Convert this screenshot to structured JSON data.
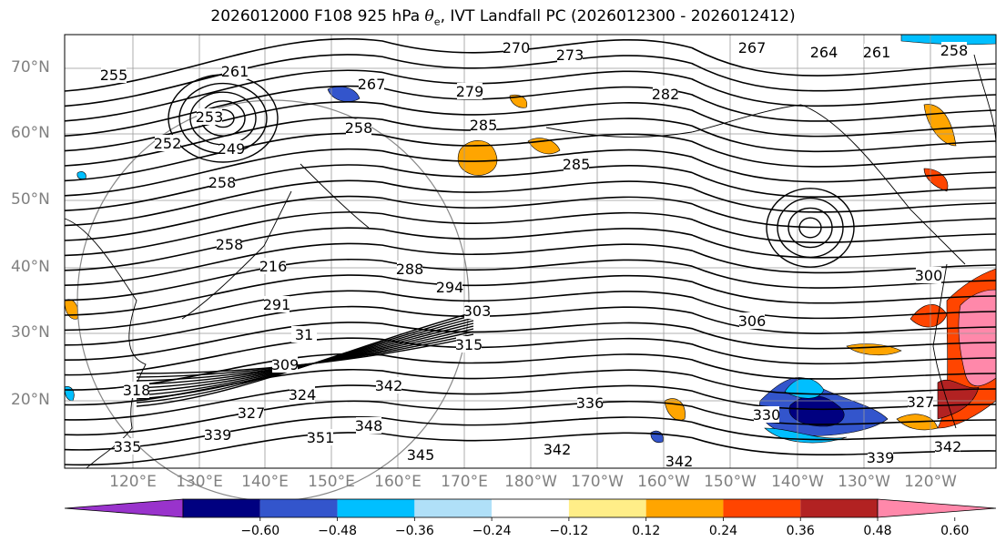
{
  "title": {
    "prefix": "2026012000 F108 925 hPa ",
    "theta": "θ",
    "subscript": "e",
    "suffix": ", IVT Landfall PC (2026012300 - 2026012412)"
  },
  "map": {
    "lat_labels": [
      "70°N",
      "60°N",
      "50°N",
      "40°N",
      "30°N",
      "20°N"
    ],
    "lon_labels": [
      "120°E",
      "130°E",
      "140°E",
      "150°E",
      "160°E",
      "170°E",
      "180°W",
      "170°W",
      "160°W",
      "150°W",
      "140°W",
      "130°W",
      "120°W"
    ],
    "contour_labels": [
      "270",
      "273",
      "267",
      "264",
      "261",
      "258",
      "255",
      "261",
      "267",
      "279",
      "282",
      "252",
      "253",
      "258",
      "249",
      "285",
      "285",
      "258",
      "258",
      "216",
      "288",
      "294",
      "291",
      "303",
      "306",
      "31",
      "315",
      "309",
      "318",
      "324",
      "327",
      "342",
      "336",
      "339",
      "335",
      "351",
      "348",
      "345",
      "342",
      "342",
      "339",
      "342",
      "327",
      "300",
      "330"
    ],
    "grid": true
  },
  "colorbar": {
    "colors": [
      "#9933cc",
      "#000080",
      "#3355cc",
      "#00bfff",
      "#b0e0f8",
      "#ffffff",
      "#ffee88",
      "#ffa500",
      "#ff4500",
      "#b22222",
      "#ff88aa"
    ],
    "ticks": [
      "−0.60",
      "−0.48",
      "−0.36",
      "−0.24",
      "−0.12",
      "0.12",
      "0.24",
      "0.36",
      "0.48",
      "0.60"
    ]
  }
}
